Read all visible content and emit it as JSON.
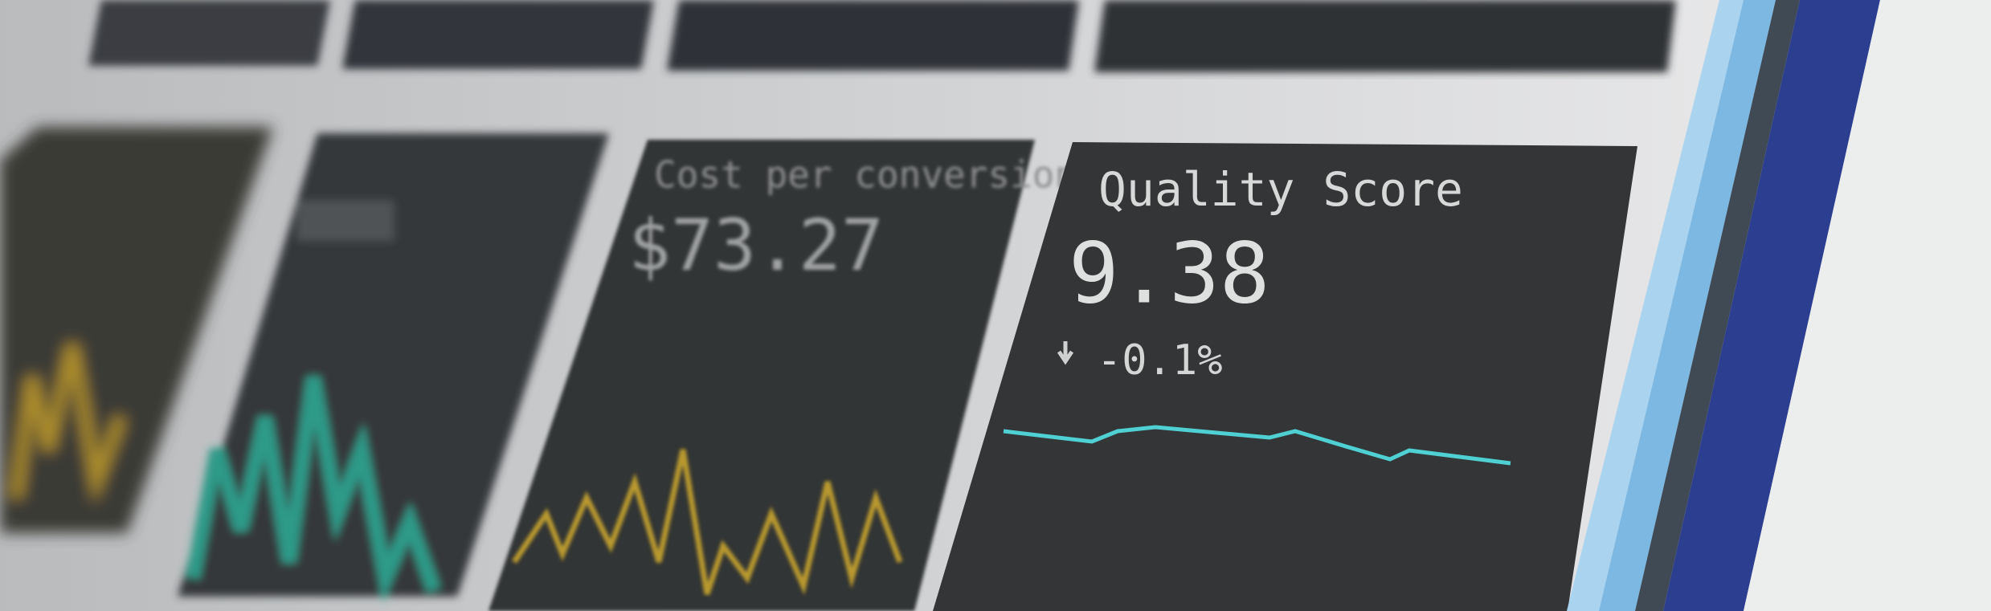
{
  "tiles": [
    {
      "title": "Cost per conversion",
      "value": "$73.27"
    },
    {
      "title": "Quality Score",
      "value": "9.38",
      "change": "-0.1%"
    }
  ]
}
